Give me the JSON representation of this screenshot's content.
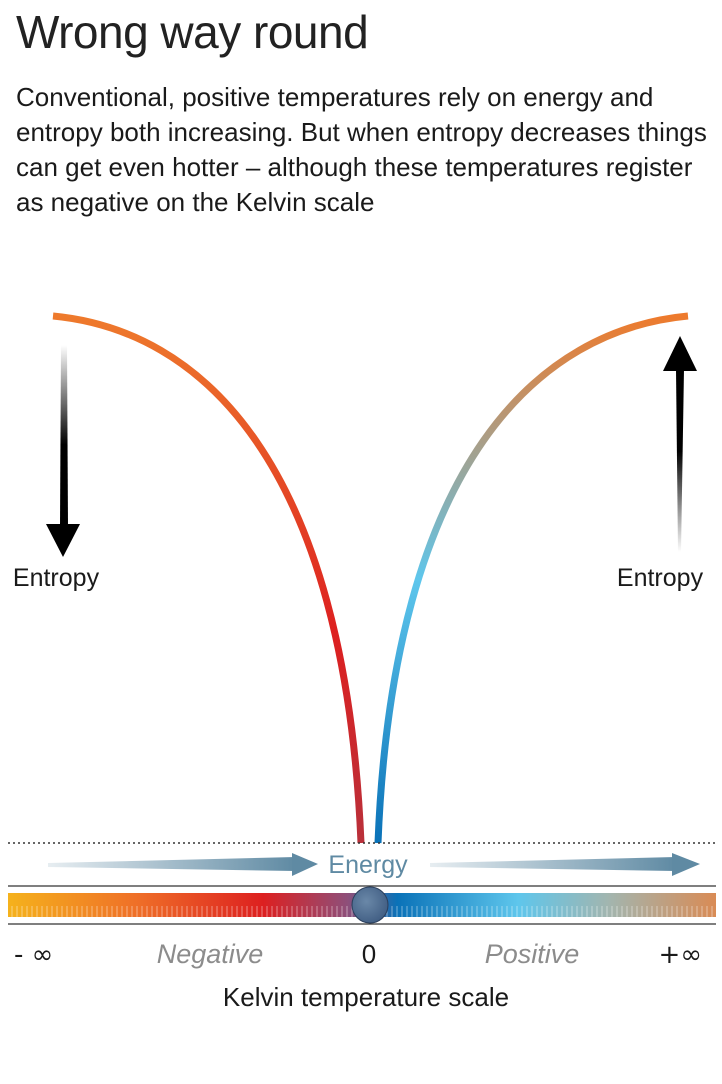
{
  "title": "Wrong way round",
  "subtitle": "Conventional, positive temperatures rely on energy and entropy both increasing. But when entropy decreases things can get even hotter – although these temperatures register as negative on the Kelvin scale",
  "labels": {
    "entropy_left": "Entropy",
    "entropy_right": "Entropy",
    "energy": "Energy",
    "neg_infinity": "- ∞",
    "negative": "Negative",
    "zero": "0",
    "positive": "Positive",
    "pos_infinity": "+∞",
    "scale_title": "Kelvin temperature scale"
  },
  "colors": {
    "orange": "#ee7a2c",
    "red": "#dd2020",
    "dark_red": "#b9303a",
    "blue": "#0a72b8",
    "light_blue": "#5ec6ec",
    "tan": "#d98b55",
    "yellow": "#f5b21c",
    "energy_arrow": "#5f8aa3",
    "text_muted": "#8c8c8c"
  }
}
